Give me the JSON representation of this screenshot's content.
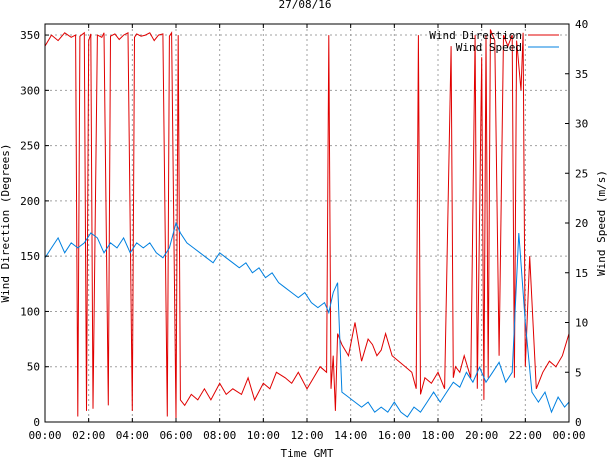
{
  "chart_data": {
    "type": "line",
    "title": "27/08/16",
    "xlabel": "Time GMT",
    "ylabel_left": "Wind Direction (Degrees)",
    "ylabel_right": "Wind Speed (m/s)",
    "x_tick_labels": [
      "00:00",
      "02:00",
      "04:00",
      "06:00",
      "08:00",
      "10:00",
      "12:00",
      "14:00",
      "16:00",
      "18:00",
      "20:00",
      "22:00",
      "00:00"
    ],
    "xlim_hours": [
      0,
      24
    ],
    "ylim_left": [
      0,
      360
    ],
    "yticks_left": [
      0,
      50,
      100,
      150,
      200,
      250,
      300,
      350
    ],
    "ylim_right": [
      0,
      40
    ],
    "yticks_right": [
      0,
      5,
      10,
      15,
      20,
      25,
      30,
      35,
      40
    ],
    "grid": true,
    "legend_position": "top-right",
    "series": [
      {
        "name": "Wind Direction",
        "axis": "left",
        "color": "#e00000",
        "x": [
          0.0,
          0.3,
          0.6,
          0.9,
          1.2,
          1.4,
          1.5,
          1.6,
          1.8,
          1.9,
          2.0,
          2.1,
          2.2,
          2.4,
          2.6,
          2.7,
          2.9,
          3.0,
          3.2,
          3.4,
          3.6,
          3.8,
          4.0,
          4.1,
          4.2,
          4.4,
          4.6,
          4.8,
          5.0,
          5.2,
          5.4,
          5.6,
          5.7,
          5.8,
          6.0,
          6.1,
          6.2,
          6.4,
          6.7,
          7.0,
          7.3,
          7.6,
          8.0,
          8.3,
          8.6,
          9.0,
          9.3,
          9.6,
          10.0,
          10.3,
          10.6,
          11.0,
          11.3,
          11.6,
          12.0,
          12.3,
          12.6,
          12.9,
          13.0,
          13.1,
          13.2,
          13.3,
          13.4,
          13.6,
          13.9,
          14.2,
          14.5,
          14.8,
          15.0,
          15.2,
          15.4,
          15.6,
          15.9,
          16.2,
          16.5,
          16.8,
          17.0,
          17.1,
          17.2,
          17.4,
          17.7,
          18.0,
          18.3,
          18.6,
          18.7,
          18.8,
          19.0,
          19.2,
          19.5,
          19.7,
          19.8,
          20.0,
          20.1,
          20.2,
          20.3,
          20.4,
          20.6,
          20.8,
          21.0,
          21.2,
          21.4,
          21.5,
          21.6,
          21.8,
          21.9,
          22.0,
          22.2,
          22.5,
          22.8,
          23.1,
          23.4,
          23.7,
          24.0
        ],
        "y": [
          340,
          350,
          345,
          352,
          348,
          350,
          5,
          349,
          352,
          10,
          345,
          351,
          12,
          350,
          348,
          352,
          15,
          349,
          351,
          346,
          350,
          352,
          10,
          348,
          351,
          349,
          350,
          352,
          345,
          350,
          351,
          5,
          349,
          352,
          3,
          350,
          20,
          15,
          25,
          20,
          30,
          20,
          35,
          25,
          30,
          25,
          40,
          20,
          35,
          30,
          45,
          40,
          35,
          45,
          30,
          40,
          50,
          45,
          350,
          30,
          60,
          10,
          80,
          70,
          60,
          90,
          55,
          75,
          70,
          60,
          65,
          80,
          60,
          55,
          50,
          45,
          30,
          350,
          25,
          40,
          35,
          45,
          30,
          340,
          40,
          50,
          45,
          60,
          40,
          350,
          30,
          330,
          20,
          350,
          40,
          355,
          345,
          60,
          350,
          340,
          350,
          40,
          345,
          300,
          352,
          50,
          150,
          30,
          45,
          55,
          50,
          60,
          80
        ]
      },
      {
        "name": "Wind Speed",
        "axis": "right",
        "color": "#0080e0",
        "x": [
          0.0,
          0.3,
          0.6,
          0.9,
          1.2,
          1.5,
          1.8,
          2.1,
          2.4,
          2.7,
          3.0,
          3.3,
          3.6,
          3.9,
          4.2,
          4.5,
          4.8,
          5.1,
          5.4,
          5.7,
          6.0,
          6.2,
          6.5,
          6.8,
          7.1,
          7.4,
          7.7,
          8.0,
          8.3,
          8.6,
          8.9,
          9.2,
          9.5,
          9.8,
          10.1,
          10.4,
          10.7,
          11.0,
          11.3,
          11.6,
          11.9,
          12.2,
          12.5,
          12.8,
          13.0,
          13.2,
          13.4,
          13.6,
          13.9,
          14.2,
          14.5,
          14.8,
          15.1,
          15.4,
          15.7,
          16.0,
          16.3,
          16.6,
          16.9,
          17.2,
          17.5,
          17.8,
          18.1,
          18.4,
          18.7,
          19.0,
          19.3,
          19.6,
          19.9,
          20.2,
          20.5,
          20.8,
          21.1,
          21.4,
          21.7,
          22.0,
          22.3,
          22.6,
          22.9,
          23.2,
          23.5,
          23.8,
          24.0
        ],
        "y": [
          16.5,
          17.5,
          18.5,
          17,
          18,
          17.5,
          18,
          19,
          18.5,
          17,
          18,
          17.5,
          18.5,
          17,
          18,
          17.5,
          18,
          17,
          16.5,
          17.5,
          20,
          19,
          18,
          17.5,
          17,
          16.5,
          16,
          17,
          16.5,
          16,
          15.5,
          16,
          15,
          15.5,
          14.5,
          15,
          14,
          13.5,
          13,
          12.5,
          13,
          12,
          11.5,
          12,
          11,
          13,
          14,
          3,
          2.5,
          2,
          1.5,
          2,
          1,
          1.5,
          1,
          2,
          1,
          0.5,
          1.5,
          1,
          2,
          3,
          2,
          3,
          4,
          3.5,
          5,
          4,
          5.5,
          4,
          5,
          6,
          4,
          5,
          19,
          10,
          3,
          2,
          3,
          1,
          2.5,
          1.5,
          2
        ]
      }
    ]
  }
}
